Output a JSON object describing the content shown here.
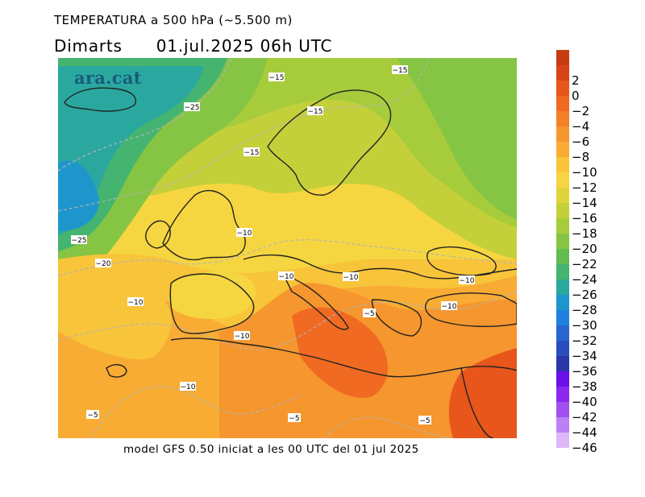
{
  "title_line1": "TEMPERATURA a 500 hPa (~5.500 m)",
  "title_day": "Dimarts",
  "title_datetime": "01.jul.2025 06h UTC",
  "brand": "ara.cat",
  "footer": "model GFS 0.50 iniciat a les 00 UTC del 01 jul 2025",
  "legend": {
    "unit_hint": "°C",
    "entries": [
      {
        "label": "",
        "color": "#c83c14"
      },
      {
        "label": "2",
        "color": "#d84418"
      },
      {
        "label": "0",
        "color": "#e8561c"
      },
      {
        "label": "−2",
        "color": "#f06a22"
      },
      {
        "label": "−4",
        "color": "#f48028"
      },
      {
        "label": "−6",
        "color": "#f6962e"
      },
      {
        "label": "−8",
        "color": "#f8ac34"
      },
      {
        "label": "−10",
        "color": "#f8c43a"
      },
      {
        "label": "−12",
        "color": "#f6d640"
      },
      {
        "label": "−14",
        "color": "#e0d43c"
      },
      {
        "label": "−16",
        "color": "#c4d03a"
      },
      {
        "label": "−18",
        "color": "#a6cc3c"
      },
      {
        "label": "−20",
        "color": "#86c444"
      },
      {
        "label": "−22",
        "color": "#62bc52"
      },
      {
        "label": "−24",
        "color": "#44b470"
      },
      {
        "label": "−26",
        "color": "#2aa8a0"
      },
      {
        "label": "−28",
        "color": "#1e96cc"
      },
      {
        "label": "−30",
        "color": "#2080e0"
      },
      {
        "label": "−32",
        "color": "#2a66d2"
      },
      {
        "label": "−34",
        "color": "#2a4ebe"
      },
      {
        "label": "−36",
        "color": "#2838a8"
      },
      {
        "label": "−38",
        "color": "#6a10e8"
      },
      {
        "label": "−40",
        "color": "#8a28ee"
      },
      {
        "label": "−42",
        "color": "#a050f0"
      },
      {
        "label": "−44",
        "color": "#bc80f4"
      },
      {
        "label": "−46",
        "color": "#dcb8f8"
      }
    ]
  },
  "contour_labels": [
    {
      "text": "−15",
      "name": "contour-label-n-atlantic"
    },
    {
      "text": "−15",
      "name": "contour-label-russia"
    },
    {
      "text": "−25",
      "name": "contour-label-iceland"
    },
    {
      "text": "−15",
      "name": "contour-label-norway"
    },
    {
      "text": "−15",
      "name": "contour-label-north-sea"
    },
    {
      "text": "−25",
      "name": "contour-label-atlantic-west"
    },
    {
      "text": "−20",
      "name": "contour-label-atlantic-sw"
    },
    {
      "text": "−10",
      "name": "contour-label-channel"
    },
    {
      "text": "−10",
      "name": "contour-label-alps"
    },
    {
      "text": "−10",
      "name": "contour-label-balkans"
    },
    {
      "text": "−10",
      "name": "contour-label-black-sea"
    },
    {
      "text": "−10",
      "name": "contour-label-turkey"
    },
    {
      "text": "−10",
      "name": "contour-label-azores"
    },
    {
      "text": "−5",
      "name": "contour-label-ionian"
    },
    {
      "text": "−10",
      "name": "contour-label-iberia-south"
    },
    {
      "text": "−10",
      "name": "contour-label-morocco"
    },
    {
      "text": "−5",
      "name": "contour-label-canaries"
    },
    {
      "text": "−5",
      "name": "contour-label-sahara"
    },
    {
      "text": "−5",
      "name": "contour-label-egypt"
    }
  ]
}
